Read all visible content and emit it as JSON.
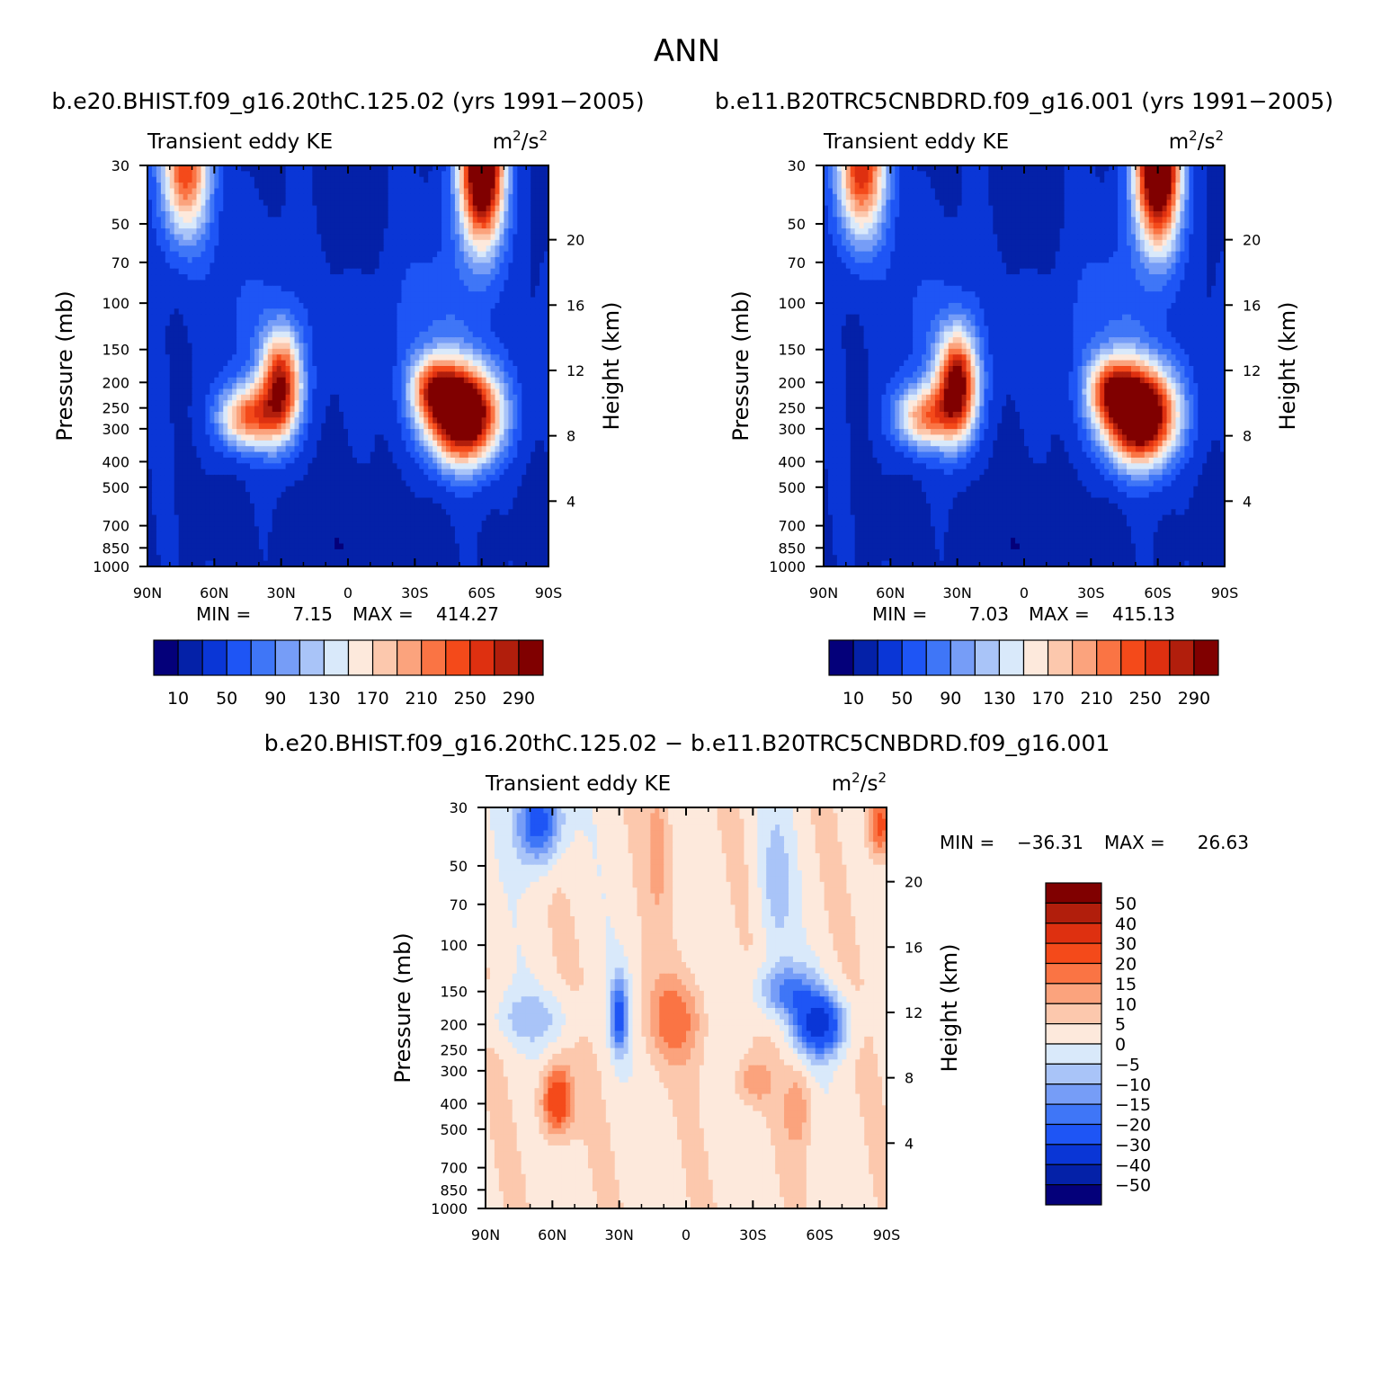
{
  "figure_title": "ANN",
  "chart_data": [
    {
      "type": "heatmap",
      "title": "b.e20.BHIST.f09_g16.20thC.125.02 (yrs 1991-2005)",
      "variable": "Transient eddy KE",
      "units": "m²/s²",
      "units_main": "m",
      "units_sup1": "2",
      "units_mid": "/s",
      "units_sup2": "2",
      "xlabel": "",
      "ylabel": "Pressure (mb)",
      "ylabel_right": "Height (km)",
      "x_ticks": [
        "90N",
        "60N",
        "30N",
        "0",
        "30S",
        "60S",
        "90S"
      ],
      "y_ticks": [
        "30",
        "50",
        "70",
        "100",
        "150",
        "200",
        "250",
        "300",
        "400",
        "500",
        "700",
        "850",
        "1000"
      ],
      "y_ticks_right": [
        "20",
        "16",
        "12",
        "8",
        "4"
      ],
      "min_label": "MIN =",
      "min": "7.15",
      "max_label": "MAX =",
      "max": "414.27",
      "levels": [
        10,
        30,
        50,
        70,
        90,
        110,
        130,
        150,
        170,
        190,
        210,
        230,
        250,
        270,
        290
      ],
      "colorbar_labels": [
        "10",
        "50",
        "90",
        "130",
        "170",
        "210",
        "250",
        "290"
      ],
      "colors": [
        "#04007a",
        "#0421a8",
        "#0a36d6",
        "#1e55f5",
        "#3f76f7",
        "#769df7",
        "#a9c4f8",
        "#d9e9fa",
        "#fde9dc",
        "#fcc8ad",
        "#fba37d",
        "#fa7444",
        "#f44a1a",
        "#de3010",
        "#b11e0c",
        "#800000"
      ],
      "maxima": [
        {
          "lat": -53,
          "p": 270,
          "value": 414.27
        },
        {
          "lat": 28,
          "p": 205,
          "value": 340
        },
        {
          "lat": -60,
          "p": 30,
          "value": 380
        },
        {
          "lat": 72,
          "p": 32,
          "value": 240
        }
      ]
    },
    {
      "type": "heatmap",
      "title": "b.e11.B20TRC5CNBDRD.f09_g16.001 (yrs 1991-2005)",
      "variable": "Transient eddy KE",
      "units": "m²/s²",
      "units_main": "m",
      "units_sup1": "2",
      "units_mid": "/s",
      "units_sup2": "2",
      "xlabel": "",
      "ylabel": "Pressure (mb)",
      "ylabel_right": "Height (km)",
      "x_ticks": [
        "90N",
        "60N",
        "30N",
        "0",
        "30S",
        "60S",
        "90S"
      ],
      "y_ticks": [
        "30",
        "50",
        "70",
        "100",
        "150",
        "200",
        "250",
        "300",
        "400",
        "500",
        "700",
        "850",
        "1000"
      ],
      "y_ticks_right": [
        "20",
        "16",
        "12",
        "8",
        "4"
      ],
      "min_label": "MIN =",
      "min": "7.03",
      "max_label": "MAX =",
      "max": "415.13",
      "levels": [
        10,
        30,
        50,
        70,
        90,
        110,
        130,
        150,
        170,
        190,
        210,
        230,
        250,
        270,
        290
      ],
      "colorbar_labels": [
        "10",
        "50",
        "90",
        "130",
        "170",
        "210",
        "250",
        "290"
      ],
      "colors": [
        "#04007a",
        "#0421a8",
        "#0a36d6",
        "#1e55f5",
        "#3f76f7",
        "#769df7",
        "#a9c4f8",
        "#d9e9fa",
        "#fde9dc",
        "#fcc8ad",
        "#fba37d",
        "#fa7444",
        "#f44a1a",
        "#de3010",
        "#b11e0c",
        "#800000"
      ],
      "maxima": [
        {
          "lat": -52,
          "p": 255,
          "value": 415.13
        },
        {
          "lat": 30,
          "p": 205,
          "value": 360
        },
        {
          "lat": -60,
          "p": 30,
          "value": 390
        },
        {
          "lat": 72,
          "p": 32,
          "value": 260
        }
      ]
    },
    {
      "type": "heatmap",
      "title": "b.e20.BHIST.f09_g16.20thC.125.02 - b.e11.B20TRC5CNBDRD.f09_g16.001",
      "variable": "Transient eddy KE",
      "units": "m²/s²",
      "units_main": "m",
      "units_sup1": "2",
      "units_mid": "/s",
      "units_sup2": "2",
      "xlabel": "",
      "ylabel": "Pressure (mb)",
      "ylabel_right": "Height (km)",
      "x_ticks": [
        "90N",
        "60N",
        "30N",
        "0",
        "30S",
        "60S",
        "90S"
      ],
      "y_ticks": [
        "30",
        "50",
        "70",
        "100",
        "150",
        "200",
        "250",
        "300",
        "400",
        "500",
        "700",
        "850",
        "1000"
      ],
      "y_ticks_right": [
        "20",
        "16",
        "12",
        "8",
        "4"
      ],
      "min_label": "MIN =",
      "min": "-36.31",
      "max_label": "MAX =",
      "max": "26.63",
      "levels": [
        -50,
        -40,
        -30,
        -20,
        -15,
        -10,
        -5,
        0,
        5,
        10,
        15,
        20,
        30,
        40,
        50
      ],
      "colorbar_labels": [
        "50",
        "40",
        "30",
        "20",
        "15",
        "10",
        "5",
        "0",
        "-5",
        "-10",
        "-15",
        "-20",
        "-30",
        "-40",
        "-50"
      ],
      "colors": [
        "#04007a",
        "#0421a8",
        "#0a36d6",
        "#1e55f5",
        "#3f76f7",
        "#769df7",
        "#a9c4f8",
        "#d9e9fa",
        "#fde9dc",
        "#fcc8ad",
        "#fba37d",
        "#fa7444",
        "#f44a1a",
        "#de3010",
        "#b11e0c",
        "#800000"
      ],
      "minima": [
        {
          "lat": -60,
          "p": 200,
          "value": -36.31
        },
        {
          "lat": 65,
          "p": 35,
          "value": -30
        },
        {
          "lat": 30,
          "p": 180,
          "value": -28
        }
      ],
      "maxima": [
        {
          "lat": 58,
          "p": 380,
          "value": 26.63
        },
        {
          "lat": -85,
          "p": 35,
          "value": 22
        },
        {
          "lat": 8,
          "p": 190,
          "value": 18
        }
      ]
    }
  ]
}
